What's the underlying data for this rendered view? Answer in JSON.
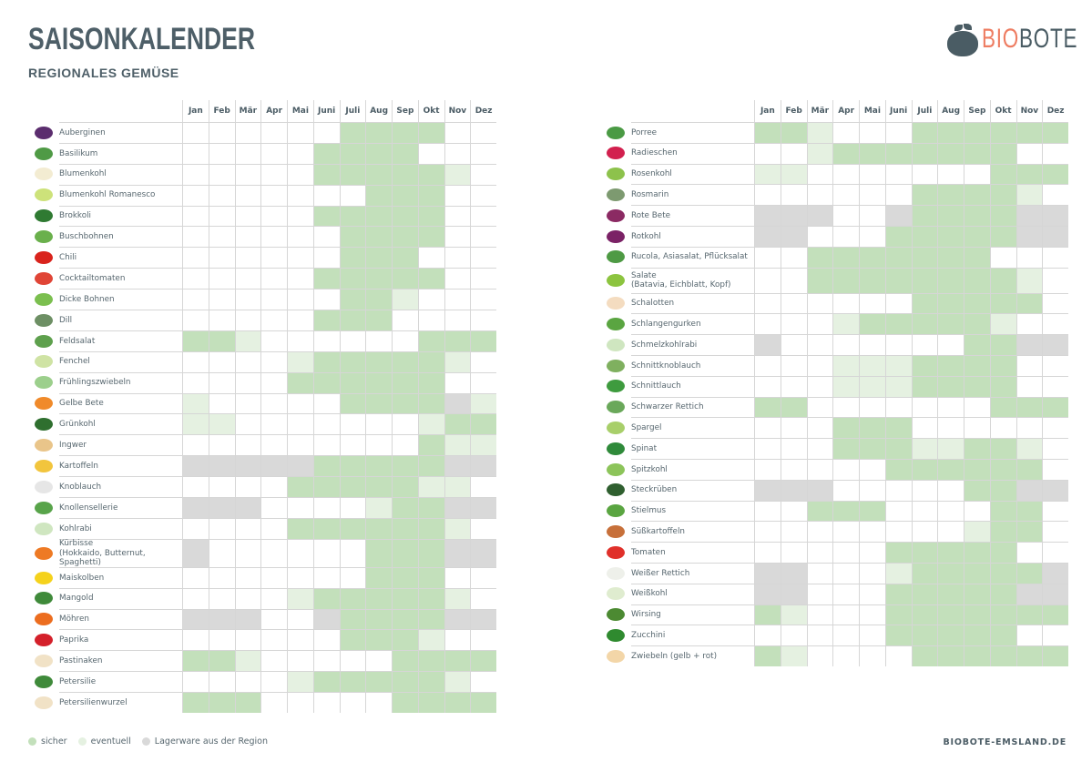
{
  "header": {
    "title": "SAISONKALENDER",
    "subtitle": "REGIONALES GEMÜSE"
  },
  "logo": {
    "part1": "BIO",
    "part2": "BOTE",
    "colors": {
      "bio": "#ee7d62",
      "bote": "#4a5c64"
    }
  },
  "months": [
    "Jan",
    "Feb",
    "Mär",
    "Apr",
    "Mai",
    "Juni",
    "Juli",
    "Aug",
    "Sep",
    "Okt",
    "Nov",
    "Dez"
  ],
  "state_codes": {
    "s": "sicher",
    "e": "eventuell",
    "l": "Lagerware aus der Region",
    ".": "none"
  },
  "colors": {
    "sicher": "#c3e0bb",
    "eventuell": "#e5f1e1",
    "lager": "#d9d9d9",
    "text": "#4b5c65"
  },
  "left_table": [
    {
      "name": "Auberginen",
      "icon": "eggplant-icon",
      "color": "#5b2d6e",
      "season": "......ssss.."
    },
    {
      "name": "Basilikum",
      "icon": "basil-icon",
      "color": "#4f9a45",
      "season": ".....ssss..."
    },
    {
      "name": "Blumenkohl",
      "icon": "cauliflower-icon",
      "color": "#f3ecd2",
      "season": ".....ssssse."
    },
    {
      "name": "Blumenkohl Romanesco",
      "icon": "romanesco-icon",
      "color": "#cde27a",
      "season": ".......sss.."
    },
    {
      "name": "Brokkoli",
      "icon": "broccoli-icon",
      "color": "#2f7a32",
      "season": ".....sssss.."
    },
    {
      "name": "Buschbohnen",
      "icon": "green-beans-icon",
      "color": "#6ab04c",
      "season": "......ssss.."
    },
    {
      "name": "Chili",
      "icon": "chili-icon",
      "color": "#d9231c",
      "season": "......sss..."
    },
    {
      "name": "Cocktailtomaten",
      "icon": "cherry-tomatoes-icon",
      "color": "#e04536",
      "season": ".....sssss.."
    },
    {
      "name": "Dicke Bohnen",
      "icon": "broad-beans-icon",
      "color": "#7bbf4f",
      "season": "......sse..."
    },
    {
      "name": "Dill",
      "icon": "dill-icon",
      "color": "#6d8f64",
      "season": ".....sss...."
    },
    {
      "name": "Feldsalat",
      "icon": "lambs-lettuce-icon",
      "color": "#5ea04d",
      "season": "sse......sss"
    },
    {
      "name": "Fenchel",
      "icon": "fennel-icon",
      "color": "#cfe3a4",
      "season": "....essssse."
    },
    {
      "name": "Frühlingszwiebeln",
      "icon": "spring-onion-icon",
      "color": "#9ccf8c",
      "season": "....ssssss.."
    },
    {
      "name": "Gelbe Bete",
      "icon": "yellow-beet-icon",
      "color": "#f08a2a",
      "season": "e.....ssssle"
    },
    {
      "name": "Grünkohl",
      "icon": "kale-icon",
      "color": "#2f6f2f",
      "season": "ee.......ess"
    },
    {
      "name": "Ingwer",
      "icon": "ginger-icon",
      "color": "#e9c58a",
      "season": ".........see"
    },
    {
      "name": "Kartoffeln",
      "icon": "potato-icon",
      "color": "#f2c53d",
      "season": "lllllsssssll"
    },
    {
      "name": "Knoblauch",
      "icon": "garlic-icon",
      "color": "#e6e6e6",
      "season": "....sssssee."
    },
    {
      "name": "Knollensellerie",
      "icon": "celeriac-icon",
      "color": "#58a44a",
      "season": "lll....essll"
    },
    {
      "name": "Kohlrabi",
      "icon": "kohlrabi-icon",
      "color": "#cfe6c0",
      "season": "....sssssse."
    },
    {
      "name": "Kürbisse",
      "subname": "(Hokkaido, Butternut, Spaghetti)",
      "icon": "pumpkin-icon",
      "color": "#ee7a24",
      "season": "l......sssll"
    },
    {
      "name": "Maiskolben",
      "icon": "corn-icon",
      "color": "#f5d21c",
      "season": ".......sss.."
    },
    {
      "name": "Mangold",
      "icon": "chard-icon",
      "color": "#3f8a3a",
      "season": "....essssse."
    },
    {
      "name": "Möhren",
      "icon": "carrot-icon",
      "color": "#ec6d1f",
      "season": "lll..lssssll"
    },
    {
      "name": "Paprika",
      "icon": "bell-pepper-icon",
      "color": "#d4202a",
      "season": "......ssse.."
    },
    {
      "name": "Pastinaken",
      "icon": "parsnip-icon",
      "color": "#f1e2c6",
      "season": "sse.....ssss"
    },
    {
      "name": "Petersilie",
      "icon": "parsley-icon",
      "color": "#3f8a3a",
      "season": "....essssse."
    },
    {
      "name": "Petersilienwurzel",
      "icon": "parsley-root-icon",
      "color": "#f1e2c6",
      "season": "sss.....ssss"
    }
  ],
  "right_table": [
    {
      "name": "Porree",
      "icon": "leek-icon",
      "color": "#4a9a44",
      "season": "sse...ssssss"
    },
    {
      "name": "Radieschen",
      "icon": "radish-icon",
      "color": "#d2204e",
      "season": "..esssssss.."
    },
    {
      "name": "Rosenkohl",
      "icon": "brussels-sprouts-icon",
      "color": "#8dc24c",
      "season": "ee.......sss"
    },
    {
      "name": "Rosmarin",
      "icon": "rosemary-icon",
      "color": "#7d9a70",
      "season": "......sssse."
    },
    {
      "name": "Rote Bete",
      "icon": "beetroot-icon",
      "color": "#8b2a63",
      "season": "lll..lssssll"
    },
    {
      "name": "Rotkohl",
      "icon": "red-cabbage-icon",
      "color": "#7b2266",
      "season": "ll...sssssll"
    },
    {
      "name": "Rucola, Asiasalat, Pflücksalat",
      "icon": "rocket-salad-icon",
      "color": "#4e9a44",
      "season": "..sssssss..."
    },
    {
      "name": "Salate",
      "subname": "(Batavia, Eichblatt, Kopf)",
      "icon": "lettuce-icon",
      "color": "#8cc43f",
      "season": "..sssssssse."
    },
    {
      "name": "Schalotten",
      "icon": "shallot-icon",
      "color": "#f4dcc0",
      "season": "......sssss."
    },
    {
      "name": "Schlangengurken",
      "icon": "cucumber-icon",
      "color": "#5aa541",
      "season": "...essssse.."
    },
    {
      "name": "Schmelzkohlrabi",
      "icon": "kohlrabi-icon",
      "color": "#cfe6c0",
      "season": "l.......ssll"
    },
    {
      "name": "Schnittknoblauch",
      "icon": "garlic-chives-icon",
      "color": "#7fb05f",
      "season": "...eeessss.."
    },
    {
      "name": "Schnittlauch",
      "icon": "chives-icon",
      "color": "#3e9b3e",
      "season": "...eeessss.."
    },
    {
      "name": "Schwarzer Rettich",
      "icon": "black-radish-icon",
      "color": "#6aa85a",
      "season": "ss.......sss"
    },
    {
      "name": "Spargel",
      "icon": "asparagus-icon",
      "color": "#a8cf6a",
      "season": "...sss......"
    },
    {
      "name": "Spinat",
      "icon": "spinach-icon",
      "color": "#2f8a3a",
      "season": "...ssseesse."
    },
    {
      "name": "Spitzkohl",
      "icon": "pointed-cabbage-icon",
      "color": "#8cc45a",
      "season": ".....ssssss."
    },
    {
      "name": "Steckrüben",
      "icon": "rutabaga-icon",
      "color": "#2f5f2f",
      "season": "lll.....ssll"
    },
    {
      "name": "Stielmus",
      "icon": "turnip-greens-icon",
      "color": "#5aa541",
      "season": "..sss....ss."
    },
    {
      "name": "Süßkartoffeln",
      "icon": "sweet-potato-icon",
      "color": "#c7703a",
      "season": "........ess."
    },
    {
      "name": "Tomaten",
      "icon": "tomato-icon",
      "color": "#e0302a",
      "season": ".....sssss.."
    },
    {
      "name": "Weißer Rettich",
      "icon": "white-radish-icon",
      "color": "#eef0ea",
      "season": "ll...esssssl"
    },
    {
      "name": "Weißkohl",
      "icon": "white-cabbage-icon",
      "color": "#dfeccf",
      "season": "ll...sssssll"
    },
    {
      "name": "Wirsing",
      "icon": "savoy-cabbage-icon",
      "color": "#4c8a32",
      "season": "se...sssssss"
    },
    {
      "name": "Zucchini",
      "icon": "zucchini-icon",
      "color": "#2f8a2f",
      "season": ".....sssss.."
    },
    {
      "name": "Zwiebeln (gelb + rot)",
      "icon": "onion-icon",
      "color": "#f3d6a8",
      "season": "se....ssssss"
    }
  ],
  "legend": [
    {
      "label": "sicher",
      "color": "#c3e0bb"
    },
    {
      "label": "eventuell",
      "color": "#e5f1e1"
    },
    {
      "label": "Lagerware aus der Region",
      "color": "#d9d9d9"
    }
  ],
  "footer": {
    "website": "BIOBOTE-EMSLAND.DE"
  }
}
